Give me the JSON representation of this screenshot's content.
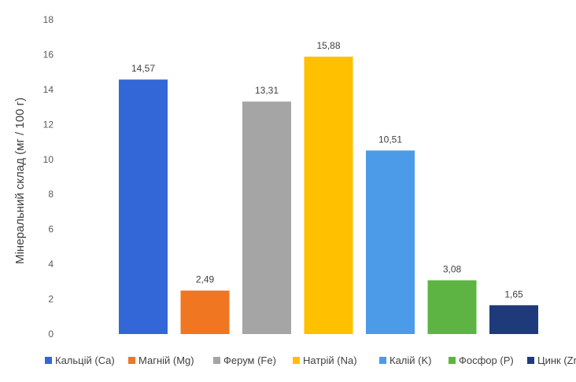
{
  "chart_data": {
    "type": "bar",
    "title": "",
    "xlabel": "",
    "ylabel": "Мінеральний склад (мг / 100 г)",
    "ylim": [
      0,
      18
    ],
    "yticks": [
      0,
      2,
      4,
      6,
      8,
      10,
      12,
      14,
      16,
      18
    ],
    "grid": false,
    "legend": "bottom",
    "categories": [
      "Кальцій (Ca)",
      "Магній (Mg)",
      "Ферум (Fe)",
      "Натрій (Na)",
      "Калій (K)",
      "Фосфор (P)",
      "Цинк (Zn)"
    ],
    "values": [
      14.57,
      2.49,
      13.31,
      15.88,
      10.51,
      3.08,
      1.65
    ],
    "value_labels": [
      "14,57",
      "2,49",
      "13,31",
      "15,88",
      "10,51",
      "3,08",
      "1,65"
    ],
    "colors": [
      "#3366d6",
      "#f07621",
      "#a5a5a5",
      "#ffc000",
      "#4c9be8",
      "#5eb443",
      "#1f3a7a"
    ]
  }
}
